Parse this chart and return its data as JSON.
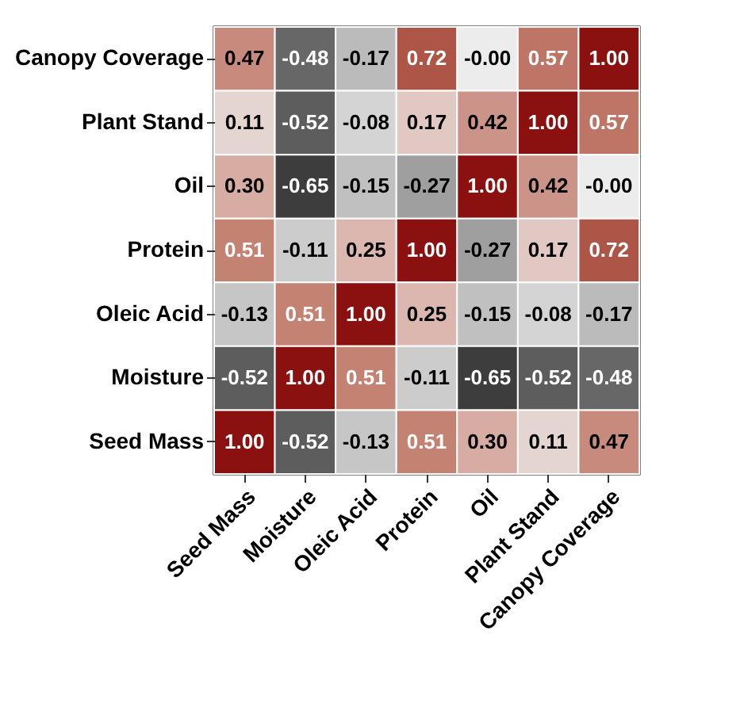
{
  "chart_data": {
    "type": "heatmap",
    "categories": [
      "Seed Mass",
      "Moisture",
      "Oleic Acid",
      "Protein",
      "Oil",
      "Plant Stand",
      "Canopy Coverage"
    ],
    "y_categories": [
      "Canopy Coverage",
      "Plant Stand",
      "Oil",
      "Protein",
      "Oleic Acid",
      "Moisture",
      "Seed Mass"
    ],
    "cells": [
      [
        0.47,
        -0.48,
        -0.17,
        0.72,
        -0.0,
        0.57,
        1.0
      ],
      [
        0.11,
        -0.52,
        -0.08,
        0.17,
        0.42,
        1.0,
        0.57
      ],
      [
        0.3,
        -0.65,
        -0.15,
        -0.27,
        1.0,
        0.42,
        -0.0
      ],
      [
        0.51,
        -0.11,
        0.25,
        1.0,
        -0.27,
        0.17,
        0.72
      ],
      [
        -0.13,
        0.51,
        1.0,
        0.25,
        -0.15,
        -0.08,
        -0.17
      ],
      [
        -0.52,
        1.0,
        0.51,
        -0.11,
        -0.65,
        -0.52,
        -0.48
      ],
      [
        1.0,
        -0.52,
        -0.13,
        0.51,
        0.3,
        0.11,
        0.47
      ]
    ],
    "cell_labels": [
      [
        "0.47",
        "-0.48",
        "-0.17",
        "0.72",
        "-0.00",
        "0.57",
        "1.00"
      ],
      [
        "0.11",
        "-0.52",
        "-0.08",
        "0.17",
        "0.42",
        "1.00",
        "0.57"
      ],
      [
        "0.30",
        "-0.65",
        "-0.15",
        "-0.27",
        "1.00",
        "0.42",
        "-0.00"
      ],
      [
        "0.51",
        "-0.11",
        "0.25",
        "1.00",
        "-0.27",
        "0.17",
        "0.72"
      ],
      [
        "-0.13",
        "0.51",
        "1.00",
        "0.25",
        "-0.15",
        "-0.08",
        "-0.17"
      ],
      [
        "-0.52",
        "1.00",
        "0.51",
        "-0.11",
        "-0.65",
        "-0.52",
        "-0.48"
      ],
      [
        "1.00",
        "-0.52",
        "-0.13",
        "0.51",
        "0.30",
        "0.11",
        "0.47"
      ]
    ]
  }
}
